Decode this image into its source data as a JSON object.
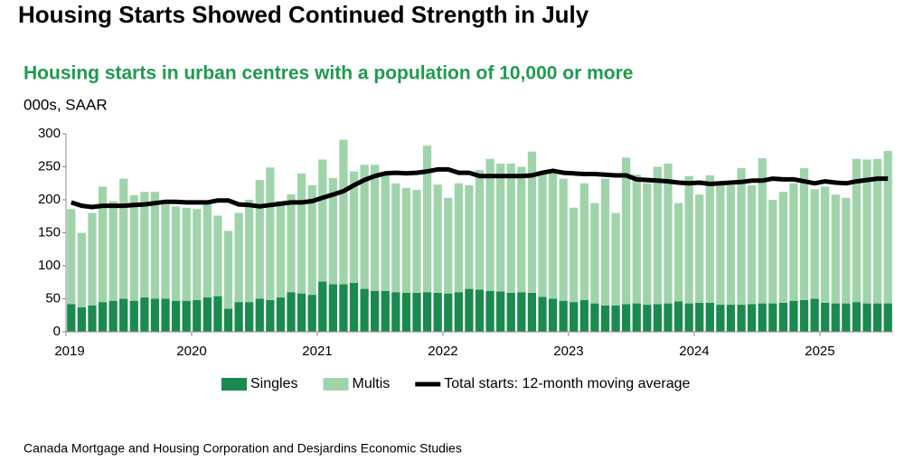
{
  "chart_data": {
    "type": "bar",
    "stacked": true,
    "title": "Housing Starts Showed Continued Strength in July",
    "subtitle": "Housing starts in urban centres with a population of 10,000 or more",
    "y_label": "000s, SAAR",
    "source": "Canada Mortgage and Housing Corporation and Desjardins Economic Studies",
    "categories": [
      "2019",
      null,
      null,
      null,
      null,
      null,
      null,
      null,
      null,
      null,
      null,
      null,
      "2020",
      null,
      null,
      null,
      null,
      null,
      null,
      null,
      null,
      null,
      null,
      null,
      "2021",
      null,
      null,
      null,
      null,
      null,
      null,
      null,
      null,
      null,
      null,
      null,
      "2022",
      null,
      null,
      null,
      null,
      null,
      null,
      null,
      null,
      null,
      null,
      null,
      "2023",
      null,
      null,
      null,
      null,
      null,
      null,
      null,
      null,
      null,
      null,
      null,
      "2024",
      null,
      null,
      null,
      null,
      null,
      null,
      null,
      null,
      null,
      null,
      null,
      "2025",
      null,
      null,
      null,
      null,
      null,
      null
    ],
    "ylim": [
      0,
      300
    ],
    "yticks": [
      0,
      50,
      100,
      150,
      200,
      250,
      300
    ],
    "grid": false,
    "legend": "bottom",
    "series": [
      {
        "name": "Singles",
        "type": "bar",
        "color": "#1a8a4e",
        "values": [
          42,
          37,
          40,
          45,
          47,
          50,
          47,
          52,
          50,
          50,
          47,
          47,
          48,
          52,
          54,
          35,
          45,
          45,
          50,
          48,
          52,
          60,
          58,
          56,
          76,
          72,
          72,
          74,
          65,
          62,
          62,
          60,
          59,
          59,
          60,
          59,
          58,
          60,
          65,
          64,
          62,
          61,
          59,
          60,
          59,
          53,
          50,
          47,
          45,
          48,
          43,
          40,
          40,
          42,
          43,
          41,
          42,
          43,
          46,
          43,
          44,
          44,
          41,
          41,
          41,
          42,
          43,
          43,
          44,
          47,
          48,
          50,
          44,
          43,
          43,
          45,
          43,
          43,
          43
        ]
      },
      {
        "name": "Multis",
        "type": "bar",
        "color": "#9fd4ab",
        "values": [
          144,
          113,
          140,
          175,
          151,
          182,
          160,
          160,
          162,
          143,
          143,
          141,
          138,
          144,
          122,
          118,
          135,
          155,
          180,
          201,
          146,
          148,
          182,
          166,
          185,
          161,
          219,
          169,
          188,
          191,
          178,
          165,
          159,
          156,
          222,
          164,
          145,
          165,
          157,
          181,
          200,
          194,
          196,
          190,
          214,
          187,
          190,
          185,
          143,
          177,
          152,
          192,
          140,
          222,
          195,
          184,
          208,
          212,
          149,
          193,
          164,
          193,
          181,
          181,
          207,
          180,
          220,
          157,
          168,
          178,
          200,
          166,
          176,
          165,
          160,
          217,
          218,
          219,
          231
        ]
      },
      {
        "name": "Total starts: 12-month moving average",
        "type": "line",
        "color": "#000000",
        "values": [
          196,
          191,
          189,
          191,
          191,
          191,
          192,
          193,
          195,
          197,
          197,
          196,
          196,
          196,
          199,
          199,
          193,
          192,
          190,
          192,
          194,
          196,
          196,
          198,
          203,
          208,
          213,
          222,
          230,
          236,
          240,
          241,
          240,
          241,
          243,
          246,
          246,
          241,
          241,
          236,
          236,
          236,
          236,
          236,
          237,
          241,
          244,
          241,
          240,
          239,
          239,
          238,
          237,
          237,
          231,
          230,
          229,
          228,
          226,
          225,
          226,
          224,
          225,
          226,
          227,
          229,
          229,
          232,
          231,
          231,
          228,
          225,
          228,
          226,
          225,
          228,
          230,
          232,
          232
        ]
      }
    ]
  }
}
